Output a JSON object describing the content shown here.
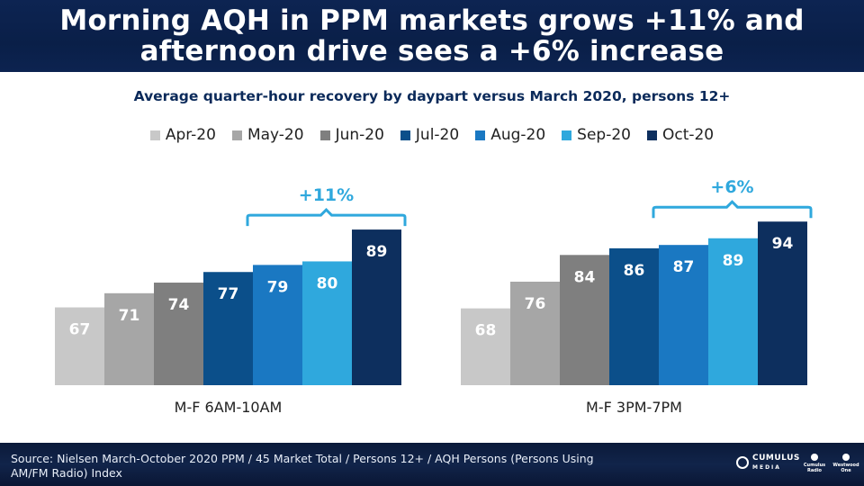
{
  "header": {
    "title_line1": "Morning AQH in PPM markets grows +11% and",
    "title_line2": "afternoon drive sees a +6% increase"
  },
  "footer": {
    "source_line1": "Source: Nielsen March-October 2020 PPM / 45 Market Total / Persons 12+ / AQH Persons (Persons Using",
    "source_line2": "AM/FM Radio) Index",
    "logo_main": "CUMULUS",
    "logo_main_sub": "MEDIA",
    "logo_small1": "Cumulus Radio",
    "logo_small2": "Westwood One"
  },
  "chart_data": {
    "type": "bar",
    "title": "Average quarter-hour recovery by daypart versus March 2020, persons 12+",
    "categories": [
      "M-F 6AM-10AM",
      "M-F 3PM-7PM"
    ],
    "series": [
      {
        "name": "Apr-20",
        "color": "#c8c8c8",
        "label_color": "#ffffff",
        "values": [
          67,
          68
        ]
      },
      {
        "name": "May-20",
        "color": "#a6a6a6",
        "label_color": "#ffffff",
        "values": [
          71,
          76
        ]
      },
      {
        "name": "Jun-20",
        "color": "#7f7f7f",
        "label_color": "#ffffff",
        "values": [
          74,
          84
        ]
      },
      {
        "name": "Jul-20",
        "color": "#0b4f8a",
        "label_color": "#ffffff",
        "values": [
          77,
          86
        ]
      },
      {
        "name": "Aug-20",
        "color": "#1a78c2",
        "label_color": "#ffffff",
        "values": [
          79,
          87
        ]
      },
      {
        "name": "Sep-20",
        "color": "#2fa8dd",
        "label_color": "#ffffff",
        "values": [
          80,
          89
        ]
      },
      {
        "name": "Oct-20",
        "color": "#0d2f5e",
        "label_color": "#ffffff",
        "values": [
          89,
          94
        ]
      }
    ],
    "annotations": [
      {
        "group": 0,
        "text": "+11%",
        "color": "#2fa8dd"
      },
      {
        "group": 1,
        "text": "+6%",
        "color": "#2fa8dd"
      }
    ],
    "legend_position": "top",
    "grid": false,
    "ylim": [
      0,
      120
    ]
  }
}
